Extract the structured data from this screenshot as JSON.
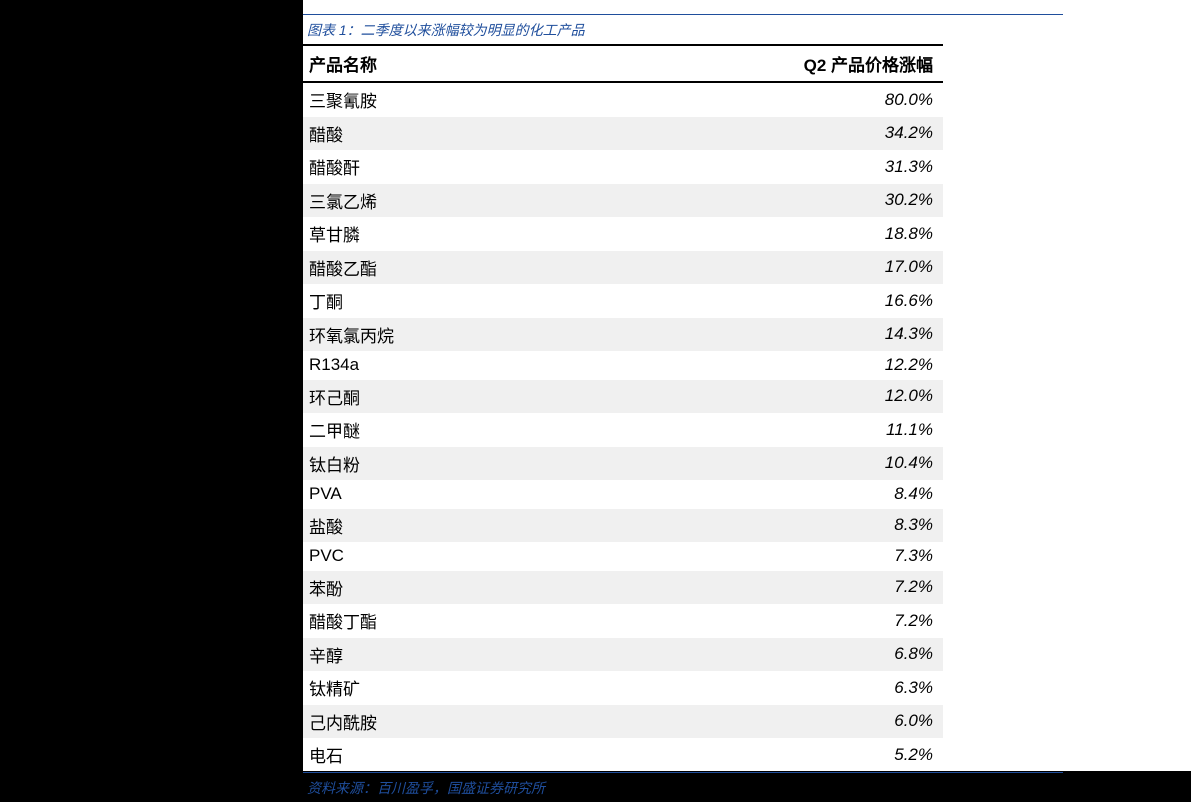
{
  "caption": "图表 1：二季度以来涨幅较为明显的化工产品",
  "source": "资料来源：百川盈孚，国盛证券研究所",
  "colors": {
    "page_bg": "#000000",
    "content_bg": "#ffffff",
    "caption_color": "#1f4e9c",
    "caption_border": "#1f4e9c",
    "header_border": "#000000",
    "text_color": "#000000",
    "row_alt_bg": "#f0f0f0"
  },
  "typography": {
    "caption_fontsize": 14,
    "caption_style": "italic",
    "header_fontsize": 17,
    "header_weight": "bold",
    "cell_fontsize": 17,
    "value_style": "italic"
  },
  "table": {
    "type": "table",
    "columns": [
      {
        "key": "name",
        "label": "产品名称",
        "align": "left"
      },
      {
        "key": "value",
        "label": "Q2 产品价格涨幅",
        "align": "right"
      }
    ],
    "rows": [
      {
        "name": "三聚氰胺",
        "value": "80.0%"
      },
      {
        "name": "醋酸",
        "value": "34.2%"
      },
      {
        "name": "醋酸酐",
        "value": "31.3%"
      },
      {
        "name": "三氯乙烯",
        "value": "30.2%"
      },
      {
        "name": "草甘膦",
        "value": "18.8%"
      },
      {
        "name": "醋酸乙酯",
        "value": "17.0%"
      },
      {
        "name": "丁酮",
        "value": "16.6%"
      },
      {
        "name": "环氧氯丙烷",
        "value": "14.3%"
      },
      {
        "name": "R134a",
        "value": "12.2%"
      },
      {
        "name": "环己酮",
        "value": "12.0%"
      },
      {
        "name": "二甲醚",
        "value": "11.1%"
      },
      {
        "name": "钛白粉",
        "value": "10.4%"
      },
      {
        "name": "PVA",
        "value": "8.4%"
      },
      {
        "name": "盐酸",
        "value": "8.3%"
      },
      {
        "name": "PVC",
        "value": "7.3%"
      },
      {
        "name": "苯酚",
        "value": "7.2%"
      },
      {
        "name": "醋酸丁酯",
        "value": "7.2%"
      },
      {
        "name": "辛醇",
        "value": "6.8%"
      },
      {
        "name": "钛精矿",
        "value": "6.3%"
      },
      {
        "name": "己内酰胺",
        "value": "6.0%"
      },
      {
        "name": "电石",
        "value": "5.2%"
      }
    ]
  }
}
